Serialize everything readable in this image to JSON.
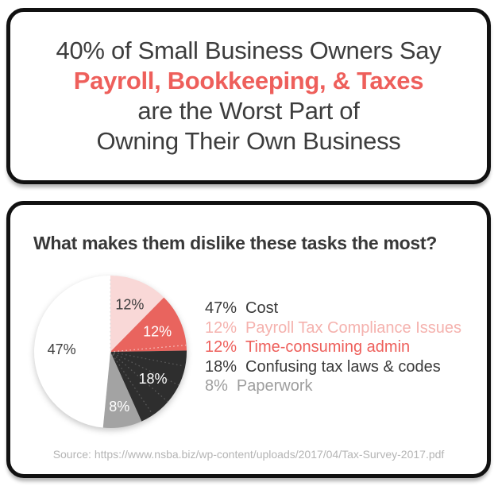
{
  "headline": {
    "line1": "40% of Small Business Owners Say",
    "line2": "Payroll, Bookkeeping, & Taxes",
    "line3": "are the Worst Part of",
    "line4": "Owning Their Own Business"
  },
  "palette": {
    "accent_red": "#ee5f5b",
    "dark_text": "#3d3d3d",
    "card_border": "#111111",
    "source_gray": "#b4b4b4"
  },
  "chart_data": {
    "type": "pie",
    "title": "What makes them dislike these tasks the most?",
    "direction": "clockwise",
    "start_angle_deg": 0,
    "legend_position": "right",
    "slices": [
      {
        "label": "Payroll Tax Compliance Issues",
        "value": 12,
        "pct_label": "12%",
        "color": "#f9d8d7",
        "text_color": "#3f3f3f",
        "legend_color": "#f5b2ae",
        "label_r": 0.67
      },
      {
        "label": "Time-consuming admin",
        "value": 12,
        "pct_label": "12%",
        "color": "#e9645e",
        "text_color": "#ffffff",
        "legend_color": "#ee5f5b",
        "label_r": 0.67
      },
      {
        "label": "Confusing tax laws & codes",
        "value": 18,
        "pct_label": "18%",
        "color": "#2e2e2e",
        "text_color": "#ffffff",
        "legend_color": "#3a3a3a",
        "label_r": 0.66
      },
      {
        "label": "Paperwork",
        "value": 8,
        "pct_label": "8%",
        "color": "#a3a3a3",
        "text_color": "#ffffff",
        "legend_color": "#9e9e9e",
        "label_r": 0.73
      },
      {
        "label": "Cost",
        "value": 47,
        "pct_label": "47%",
        "color": "#ffffff",
        "text_color": "#3f3f3f",
        "legend_color": "#3a3a3a",
        "label_r": 0.64
      }
    ],
    "legend_order": [
      4,
      0,
      1,
      2,
      3
    ]
  },
  "source_text": "Source: https://www.nsba.biz/wp-content/uploads/2017/04/Tax-Survey-2017.pdf"
}
